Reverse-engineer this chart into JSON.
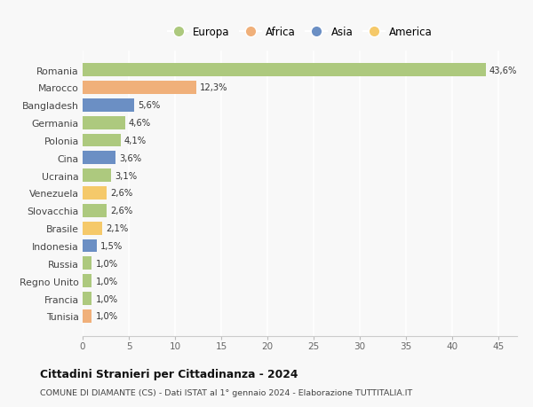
{
  "categories": [
    "Romania",
    "Marocco",
    "Bangladesh",
    "Germania",
    "Polonia",
    "Cina",
    "Ucraina",
    "Venezuela",
    "Slovacchia",
    "Brasile",
    "Indonesia",
    "Russia",
    "Regno Unito",
    "Francia",
    "Tunisia"
  ],
  "values": [
    43.6,
    12.3,
    5.6,
    4.6,
    4.1,
    3.6,
    3.1,
    2.6,
    2.6,
    2.1,
    1.5,
    1.0,
    1.0,
    1.0,
    1.0
  ],
  "labels": [
    "43,6%",
    "12,3%",
    "5,6%",
    "4,6%",
    "4,1%",
    "3,6%",
    "3,1%",
    "2,6%",
    "2,6%",
    "2,1%",
    "1,5%",
    "1,0%",
    "1,0%",
    "1,0%",
    "1,0%"
  ],
  "colors": [
    "#adc97e",
    "#f0b07a",
    "#6b8fc4",
    "#adc97e",
    "#adc97e",
    "#6b8fc4",
    "#adc97e",
    "#f5c96a",
    "#adc97e",
    "#f5c96a",
    "#6b8fc4",
    "#adc97e",
    "#adc97e",
    "#adc97e",
    "#f0b07a"
  ],
  "legend": [
    {
      "label": "Europa",
      "color": "#adc97e"
    },
    {
      "label": "Africa",
      "color": "#f0b07a"
    },
    {
      "label": "Asia",
      "color": "#6b8fc4"
    },
    {
      "label": "America",
      "color": "#f5c96a"
    }
  ],
  "xlim": [
    0,
    47
  ],
  "xticks": [
    0,
    5,
    10,
    15,
    20,
    25,
    30,
    35,
    40,
    45
  ],
  "title": "Cittadini Stranieri per Cittadinanza - 2024",
  "subtitle": "COMUNE DI DIAMANTE (CS) - Dati ISTAT al 1° gennaio 2024 - Elaborazione TUTTITALIA.IT",
  "bg_color": "#f8f8f8",
  "grid_color": "#ffffff",
  "bar_height": 0.75
}
